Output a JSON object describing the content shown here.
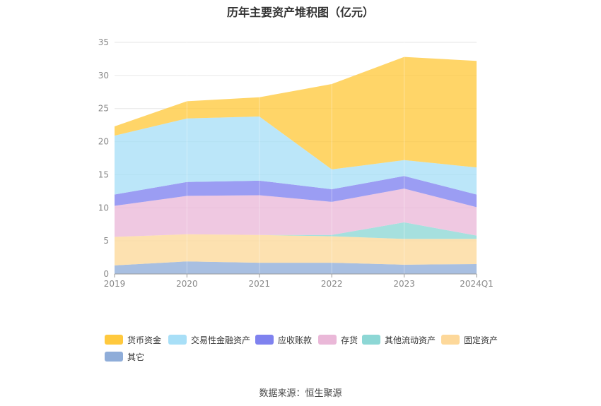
{
  "chart_data": {
    "type": "area",
    "stacked": true,
    "title": "历年主要资产堆积图（亿元）",
    "categories": [
      "2019",
      "2020",
      "2021",
      "2022",
      "2023",
      "2024Q1"
    ],
    "y_ticks": [
      "0",
      "5",
      "10",
      "15",
      "20",
      "25",
      "30",
      "35"
    ],
    "ylim": [
      0,
      35
    ],
    "grid": true,
    "legend_position": "bottom",
    "series": [
      {
        "name": "其它",
        "color": "#8fadd9",
        "values": [
          1.3,
          1.9,
          1.7,
          1.7,
          1.4,
          1.5
        ]
      },
      {
        "name": "固定资产",
        "color": "#fdd89a",
        "values": [
          4.3,
          4.1,
          4.2,
          4.0,
          3.9,
          3.8
        ]
      },
      {
        "name": "其他流动资产",
        "color": "#8dd7d5",
        "values": [
          0.0,
          0.0,
          0.0,
          0.2,
          2.5,
          0.5
        ]
      },
      {
        "name": "存货",
        "color": "#eab8d8",
        "values": [
          4.7,
          5.8,
          6.0,
          5.0,
          5.1,
          4.3
        ]
      },
      {
        "name": "应收账款",
        "color": "#7f82ef",
        "values": [
          1.7,
          2.1,
          2.2,
          1.9,
          1.9,
          1.9
        ]
      },
      {
        "name": "交易性金融资产",
        "color": "#a8dff7",
        "values": [
          8.9,
          9.6,
          9.7,
          3.0,
          2.4,
          4.1
        ]
      },
      {
        "name": "货币资金",
        "color": "#ffc93e",
        "values": [
          1.4,
          2.6,
          2.9,
          12.9,
          15.6,
          16.1
        ]
      }
    ]
  },
  "legend": [
    {
      "label": "货币资金",
      "color": "#ffc93e"
    },
    {
      "label": "交易性金融资产",
      "color": "#a8dff7"
    },
    {
      "label": "应收账款",
      "color": "#7f82ef"
    },
    {
      "label": "存货",
      "color": "#eab8d8"
    },
    {
      "label": "其他流动资产",
      "color": "#8dd7d5"
    },
    {
      "label": "固定资产",
      "color": "#fdd89a"
    },
    {
      "label": "其它",
      "color": "#8fadd9"
    }
  ],
  "source": "数据来源：恒生聚源"
}
